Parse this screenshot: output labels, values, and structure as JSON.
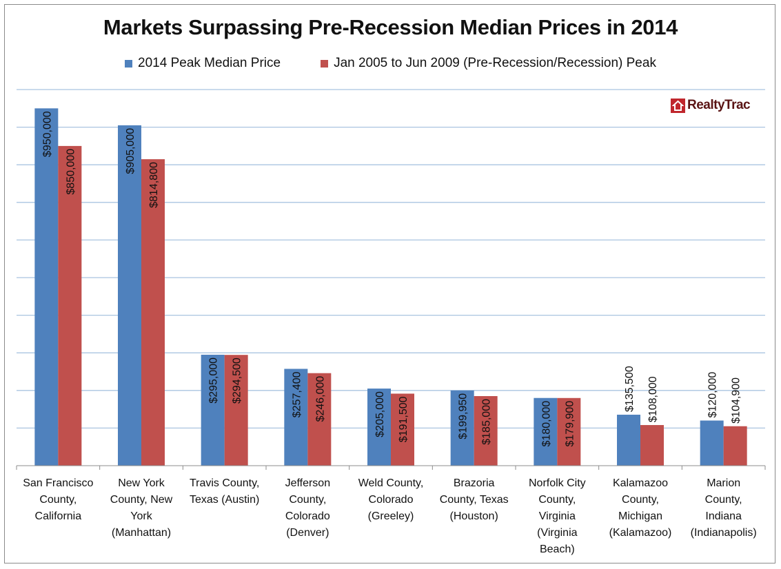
{
  "chart_data": {
    "type": "bar",
    "title": "Markets Surpassing Pre-Recession Median Prices in 2014",
    "categories": [
      "San Francisco County, California",
      "New York County, New York (Manhattan)",
      "Travis County, Texas (Austin)",
      "Jefferson County, Colorado (Denver)",
      "Weld County, Colorado (Greeley)",
      "Brazoria County, Texas (Houston)",
      "Norfolk City County, Virginia (Virginia Beach)",
      "Kalamazoo County, Michigan (Kalamazoo)",
      "Marion County, Indiana (Indianapolis)"
    ],
    "series": [
      {
        "name": "2014 Peak Median Price",
        "color": "#4f81bd",
        "values": [
          950000,
          905000,
          295000,
          257400,
          205000,
          199950,
          180000,
          135500,
          120000
        ],
        "labels": [
          "$950,000",
          "$905,000",
          "$295,000",
          "$257,400",
          "$205,000",
          "$199,950",
          "$180,000",
          "$135,500",
          "$120,000"
        ]
      },
      {
        "name": "Jan 2005 to Jun 2009 (Pre-Recession/Recession) Peak",
        "color": "#c0504d",
        "values": [
          850000,
          814800,
          294500,
          246000,
          191500,
          185000,
          179900,
          108000,
          104900
        ],
        "labels": [
          "$850,000",
          "$814,800",
          "$294,500",
          "$246,000",
          "$191,500",
          "$185,000",
          "$179,900",
          "$108,000",
          "$104,900"
        ]
      }
    ],
    "xlabel": "",
    "ylabel": "",
    "ylim": [
      0,
      1000000
    ],
    "grid": true,
    "legend": "top"
  },
  "logo": {
    "text": "RealtyTrac"
  }
}
